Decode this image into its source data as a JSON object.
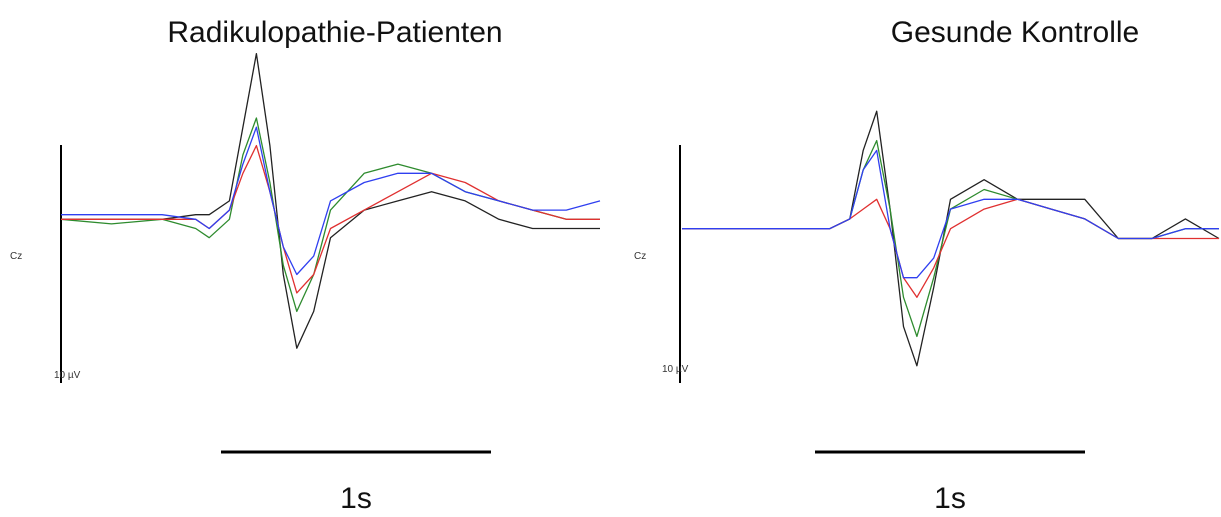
{
  "chart_data": [
    {
      "type": "line",
      "title": "Radikulopathie-Patienten",
      "channel_label": "Cz",
      "amplitude_scale_label": "10 µV",
      "time_scale_label": "1s",
      "x_unit": "s",
      "y_unit": "µV",
      "xlim": [
        -0.6,
        1.0
      ],
      "ylim": [
        -18,
        16
      ],
      "colors": {
        "black": "#222222",
        "green": "#2e8b2e",
        "red": "#e03030",
        "blue": "#2f3ff0"
      },
      "series": [
        {
          "color": "black",
          "x": [
            -0.6,
            -0.45,
            -0.3,
            -0.2,
            -0.16,
            -0.1,
            -0.06,
            -0.02,
            0.02,
            0.06,
            0.1,
            0.15,
            0.2,
            0.3,
            0.4,
            0.5,
            0.6,
            0.7,
            0.8,
            0.9,
            1.0
          ],
          "y": [
            0,
            0,
            0,
            0.5,
            0.5,
            2,
            10,
            18,
            8,
            -6,
            -14,
            -10,
            -2,
            1,
            2,
            3,
            2,
            0,
            -1,
            -1,
            -1
          ]
        },
        {
          "color": "green",
          "x": [
            -0.6,
            -0.45,
            -0.3,
            -0.2,
            -0.16,
            -0.1,
            -0.06,
            -0.02,
            0.02,
            0.06,
            0.1,
            0.15,
            0.2,
            0.3,
            0.4,
            0.5,
            0.6,
            0.7,
            0.8,
            0.9,
            1.0
          ],
          "y": [
            0,
            -0.5,
            0,
            -1,
            -2,
            0,
            7,
            11,
            4,
            -5,
            -10,
            -6,
            1,
            5,
            6,
            5,
            3,
            2,
            1,
            0,
            0
          ]
        },
        {
          "color": "red",
          "x": [
            -0.6,
            -0.45,
            -0.3,
            -0.2,
            -0.16,
            -0.1,
            -0.06,
            -0.02,
            0.02,
            0.06,
            0.1,
            0.15,
            0.2,
            0.3,
            0.4,
            0.5,
            0.6,
            0.7,
            0.8,
            0.9,
            1.0
          ],
          "y": [
            0,
            0,
            0,
            0,
            -1,
            1,
            5,
            8,
            3,
            -3,
            -8,
            -6,
            -1,
            1,
            3,
            5,
            4,
            2,
            1,
            0,
            0
          ]
        },
        {
          "color": "blue",
          "x": [
            -0.6,
            -0.45,
            -0.3,
            -0.2,
            -0.16,
            -0.1,
            -0.06,
            -0.02,
            0.02,
            0.06,
            0.1,
            0.15,
            0.2,
            0.3,
            0.4,
            0.5,
            0.6,
            0.7,
            0.8,
            0.9,
            1.0
          ],
          "y": [
            0.5,
            0.5,
            0.5,
            0,
            -1,
            1,
            6,
            10,
            3,
            -3,
            -6,
            -4,
            2,
            4,
            5,
            5,
            3,
            2,
            1,
            1,
            2
          ]
        }
      ]
    },
    {
      "type": "line",
      "title": "Gesunde Kontrolle",
      "channel_label": "Cz",
      "amplitude_scale_label": "10 µV",
      "time_scale_label": "1s",
      "x_unit": "s",
      "y_unit": "µV",
      "xlim": [
        -0.6,
        1.0
      ],
      "ylim": [
        -18,
        16
      ],
      "colors": {
        "black": "#222222",
        "green": "#2e8b2e",
        "red": "#e03030",
        "blue": "#2f3ff0"
      },
      "series": [
        {
          "color": "black",
          "x": [
            -0.6,
            -0.45,
            -0.3,
            -0.2,
            -0.16,
            -0.1,
            -0.06,
            -0.02,
            0.02,
            0.06,
            0.1,
            0.15,
            0.2,
            0.3,
            0.4,
            0.5,
            0.6,
            0.7,
            0.8,
            0.9,
            1.0
          ],
          "y": [
            0,
            0,
            0,
            0,
            0,
            1,
            8,
            12,
            2,
            -10,
            -14,
            -6,
            3,
            5,
            3,
            3,
            3,
            -1,
            -1,
            1,
            -1
          ]
        },
        {
          "color": "green",
          "x": [
            -0.6,
            -0.45,
            -0.3,
            -0.2,
            -0.16,
            -0.1,
            -0.06,
            -0.02,
            0.02,
            0.06,
            0.1,
            0.15,
            0.2,
            0.3,
            0.4,
            0.5,
            0.6,
            0.7,
            0.8,
            0.9,
            1.0
          ],
          "y": [
            0,
            0,
            0,
            0,
            0,
            1,
            6,
            9,
            2,
            -7,
            -11,
            -5,
            2,
            4,
            3,
            2,
            1,
            -1,
            -1,
            0,
            0
          ]
        },
        {
          "color": "red",
          "x": [
            -0.6,
            -0.45,
            -0.3,
            -0.2,
            -0.16,
            -0.1,
            -0.06,
            -0.02,
            0.02,
            0.06,
            0.1,
            0.15,
            0.2,
            0.3,
            0.4,
            0.5,
            0.6,
            0.7,
            0.8,
            0.9,
            1.0
          ],
          "y": [
            0,
            0,
            0,
            0,
            0,
            1,
            2,
            3,
            0,
            -5,
            -7,
            -4,
            0,
            2,
            3,
            2,
            1,
            -1,
            -1,
            -1,
            -1
          ]
        },
        {
          "color": "blue",
          "x": [
            -0.6,
            -0.45,
            -0.3,
            -0.2,
            -0.16,
            -0.1,
            -0.06,
            -0.02,
            0.02,
            0.06,
            0.1,
            0.15,
            0.2,
            0.3,
            0.4,
            0.5,
            0.6,
            0.7,
            0.8,
            0.9,
            1.0
          ],
          "y": [
            0,
            0,
            0,
            0,
            0,
            1,
            6,
            8,
            0,
            -5,
            -5,
            -3,
            2,
            3,
            3,
            2,
            1,
            -1,
            -1,
            0,
            0
          ]
        }
      ]
    }
  ]
}
